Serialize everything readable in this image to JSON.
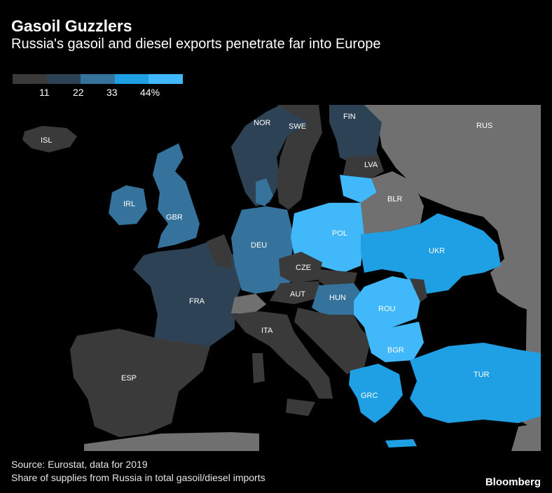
{
  "header": {
    "title": "Gasoil Guzzlers",
    "subtitle": "Russia's gasoil and diesel exports penetrate far into Europe"
  },
  "legend": {
    "colors": [
      "#3a3a3a",
      "#2e4255",
      "#35739d",
      "#1f9fe4",
      "#41b8fa"
    ],
    "ticks": [
      "11",
      "22",
      "33",
      "44%"
    ]
  },
  "countries": [
    {
      "code": "ISL",
      "label": "ISL"
    },
    {
      "code": "NOR",
      "label": "NOR"
    },
    {
      "code": "SWE",
      "label": "SWE"
    },
    {
      "code": "FIN",
      "label": "FIN"
    },
    {
      "code": "RUS",
      "label": "RUS"
    },
    {
      "code": "LVA",
      "label": "LVA"
    },
    {
      "code": "BLR",
      "label": "BLR"
    },
    {
      "code": "IRL",
      "label": "IRL"
    },
    {
      "code": "GBR",
      "label": "GBR"
    },
    {
      "code": "POL",
      "label": "POL"
    },
    {
      "code": "DEU",
      "label": "DEU"
    },
    {
      "code": "UKR",
      "label": "UKR"
    },
    {
      "code": "CZE",
      "label": "CZE"
    },
    {
      "code": "FRA",
      "label": "FRA"
    },
    {
      "code": "AUT",
      "label": "AUT"
    },
    {
      "code": "HUN",
      "label": "HUN"
    },
    {
      "code": "ROU",
      "label": "ROU"
    },
    {
      "code": "ITA",
      "label": "ITA"
    },
    {
      "code": "BGR",
      "label": "BGR"
    },
    {
      "code": "ESP",
      "label": "ESP"
    },
    {
      "code": "TUR",
      "label": "TUR"
    },
    {
      "code": "GRC",
      "label": "GRC"
    }
  ],
  "footer": {
    "source": "Source: Eurostat, data for 2019",
    "note": "Share of supplies from Russia in total gasoil/diesel imports",
    "brand": "Bloomberg"
  }
}
